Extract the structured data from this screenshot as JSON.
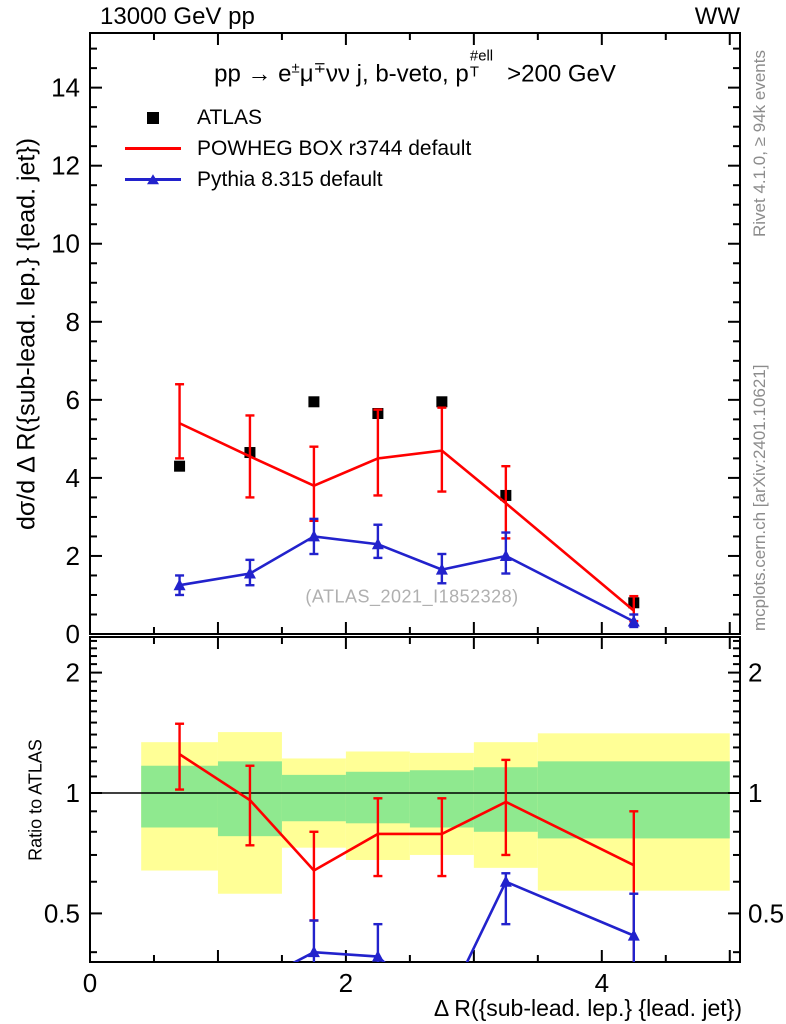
{
  "header": {
    "left": "13000 GeV pp",
    "right": "WW"
  },
  "title_segments": [
    {
      "text": "pp "
    },
    {
      "text": "→ "
    },
    {
      "text": "e"
    },
    {
      "text": "±",
      "style": "sup"
    },
    {
      "text": "μ"
    },
    {
      "text": "∓",
      "style": "sup"
    },
    {
      "text": "νν j, b-veto, p"
    },
    {
      "style": "stack",
      "over": "#ell",
      "under": "T"
    },
    {
      "text": ">200 GeV"
    }
  ],
  "legend": [
    {
      "label": "ATLAS",
      "marker": "square",
      "color": "#000000"
    },
    {
      "label": "POWHEG BOX r3744 default",
      "marker": "line",
      "color": "#ff0000"
    },
    {
      "label": "Pythia 8.315 default",
      "marker": "line-triangle",
      "color": "#2222cc"
    }
  ],
  "watermark": "(ATLAS_2021_I1852328)",
  "side_notes": {
    "top": "Rivet 4.1.0, ≥ 94k events",
    "bottom": "mcplots.cern.ch [arXiv:2401.10621]"
  },
  "chart_data": {
    "type": "line",
    "xlabel": "Δ R({sub-lead. lep.} {lead. jet})",
    "ylabel_main": "dσ/d Δ R({sub-lead. lep.} {lead. jet})",
    "ylabel_ratio": "Ratio to ATLAS",
    "xlim": [
      0,
      5.08
    ],
    "xticks_labeled": [
      0,
      2,
      4
    ],
    "x": [
      0.7,
      1.25,
      1.75,
      2.25,
      2.75,
      3.25,
      4.25
    ],
    "bin_edges": [
      0.4,
      1.0,
      1.5,
      2.0,
      2.5,
      3.0,
      3.5,
      5.0
    ],
    "main": {
      "ylim": [
        0,
        15.4
      ],
      "yticks_labeled": [
        0,
        2,
        4,
        6,
        8,
        10,
        12,
        14
      ],
      "series": [
        {
          "name": "ATLAS",
          "marker": "square",
          "line": false,
          "color": "#000000",
          "values": [
            4.3,
            4.65,
            5.95,
            5.65,
            5.95,
            3.55,
            0.8
          ]
        },
        {
          "name": "POWHEG BOX r3744 default",
          "marker": "none",
          "color": "#ff0000",
          "values": [
            5.4,
            4.55,
            3.8,
            4.5,
            4.7,
            3.35,
            0.6
          ],
          "err_lo": [
            4.5,
            3.5,
            2.9,
            3.55,
            3.65,
            2.45,
            0.33
          ],
          "err_hi": [
            6.4,
            5.6,
            4.8,
            5.75,
            5.8,
            4.3,
            0.97
          ]
        },
        {
          "name": "Pythia 8.315 default",
          "marker": "triangle",
          "color": "#2222cc",
          "values": [
            1.25,
            1.55,
            2.5,
            2.3,
            1.65,
            2.0,
            0.32
          ],
          "err_lo": [
            1.0,
            1.25,
            2.05,
            1.95,
            1.3,
            1.55,
            0.18
          ],
          "err_hi": [
            1.5,
            1.9,
            2.95,
            2.8,
            2.05,
            2.6,
            0.5
          ]
        }
      ]
    },
    "ratio": {
      "scale": "log",
      "ylim": [
        0.378,
        2.455
      ],
      "yticks_labeled": [
        0.5,
        1,
        2
      ],
      "reference_line": 1,
      "bands": {
        "yellow": {
          "color": "#ffff96",
          "lo": [
            0.64,
            0.56,
            0.73,
            0.68,
            0.7,
            0.65,
            0.57
          ],
          "hi": [
            1.34,
            1.42,
            1.22,
            1.27,
            1.26,
            1.34,
            1.41
          ]
        },
        "green": {
          "color": "#8fe98f",
          "lo": [
            0.82,
            0.78,
            0.85,
            0.84,
            0.82,
            0.8,
            0.77
          ],
          "hi": [
            1.17,
            1.2,
            1.11,
            1.13,
            1.14,
            1.16,
            1.2
          ]
        }
      },
      "series": [
        {
          "name": "POWHEG BOX r3744 default",
          "marker": "none",
          "color": "#ff0000",
          "values": [
            1.25,
            0.96,
            0.64,
            0.79,
            0.79,
            0.95,
            0.66
          ],
          "err_lo": [
            1.02,
            0.74,
            0.48,
            0.62,
            0.62,
            0.7,
            0.36
          ],
          "err_hi": [
            1.49,
            1.17,
            0.8,
            0.97,
            0.97,
            1.21,
            0.9
          ]
        },
        {
          "name": "Pythia 8.315 default",
          "marker": "triangle",
          "color": "#2222cc",
          "values": [
            0.29,
            0.33,
            0.4,
            0.39,
            0.28,
            0.6,
            0.44
          ],
          "err_lo": [
            0.25,
            0.29,
            0.34,
            0.33,
            0.24,
            0.47,
            0.35
          ],
          "err_hi": [
            0.33,
            0.37,
            0.48,
            0.47,
            0.32,
            0.63,
            0.56
          ]
        }
      ]
    }
  }
}
